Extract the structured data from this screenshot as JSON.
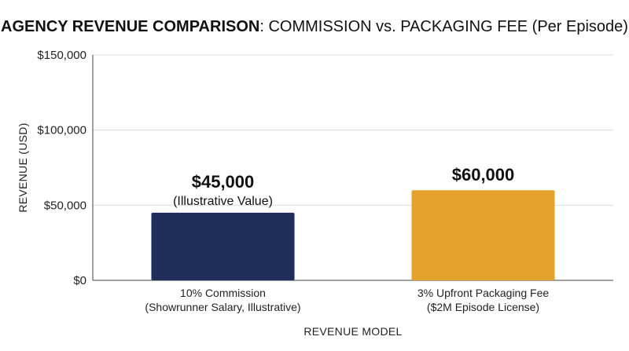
{
  "chart_data": {
    "type": "bar",
    "title_bold": "AGENCY REVENUE COMPARISON",
    "title_rest": ": COMMISSION vs. PACKAGING FEE (Per Episode)",
    "xlabel": "REVENUE MODEL",
    "ylabel": "REVENUE (USD)",
    "ylim": [
      0,
      150000
    ],
    "yticks": [
      {
        "value": 0,
        "label": "$0"
      },
      {
        "value": 50000,
        "label": "$50,000"
      },
      {
        "value": 100000,
        "label": "$100,000"
      },
      {
        "value": 150000,
        "label": "$150,000"
      }
    ],
    "grid": true,
    "bars": [
      {
        "category_lines": [
          "10% Commission",
          "(Showrunner Salary, Illustrative)"
        ],
        "value": 45000,
        "value_label": "$45,000",
        "value_sublabel": "(Illustrative Value)",
        "color": "#1f2d5a"
      },
      {
        "category_lines": [
          "3% Upfront Packaging Fee",
          "($2M Episode License)"
        ],
        "value": 60000,
        "value_label": "$60,000",
        "value_sublabel": "",
        "color": "#e4a12b"
      }
    ]
  }
}
